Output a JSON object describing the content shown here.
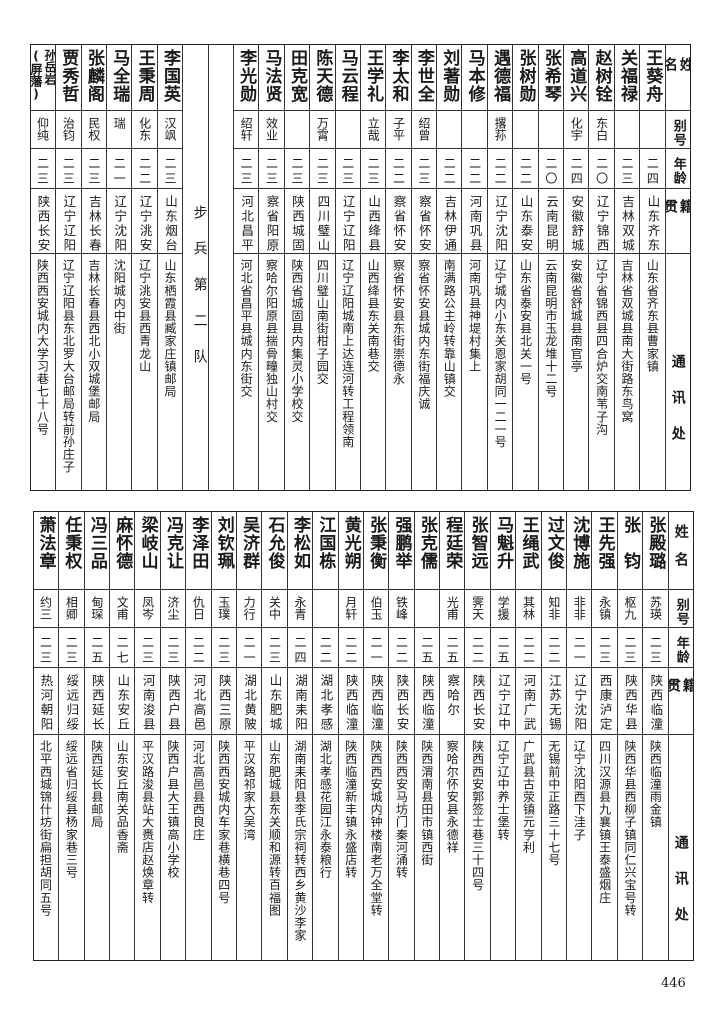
{
  "headers": {
    "name": "姓名",
    "alias": "别号",
    "age": "年龄",
    "origin": "籍贯",
    "address": "通讯处"
  },
  "top": {
    "rows_before_section": [
      {
        "name": "王葵舟",
        "alias": "",
        "age": "二四",
        "origin": "山东齐东",
        "address": "山东省齐东县曹家镇"
      },
      {
        "name": "关福禄",
        "alias": "",
        "age": "二三",
        "origin": "吉林双城",
        "address": "吉林省双城县南大街路东鸟窝"
      },
      {
        "name": "赵树铨",
        "alias": "东白",
        "age": "二〇",
        "origin": "辽宁锦西",
        "address": "辽宁省锦西县四合炉交南苇子沟"
      },
      {
        "name": "高道兴",
        "alias": "化宇",
        "age": "二四",
        "origin": "安徽舒城",
        "address": "安徽省舒城县南官亭"
      },
      {
        "name": "张希琴",
        "alias": "",
        "age": "二〇",
        "origin": "云南昆明",
        "address": "云南昆明市玉龙堆十二号"
      },
      {
        "name": "张树勋",
        "alias": "",
        "age": "二二",
        "origin": "山东泰安",
        "address": "山东省泰安县北关一号"
      },
      {
        "name": "遇德福",
        "alias": "撂荪",
        "age": "二二",
        "origin": "辽宁沈阳",
        "address": "辽宁城内小东关恩家胡同一二一号"
      },
      {
        "name": "马本修",
        "alias": "",
        "age": "二二",
        "origin": "河南巩县",
        "address": "河南巩县神堤村集上"
      },
      {
        "name": "刘著勋",
        "alias": "",
        "age": "二二",
        "origin": "吉林伊通",
        "address": "南满路公主岭转靠山镇交"
      },
      {
        "name": "李世全",
        "alias": "绍曾",
        "age": "二三",
        "origin": "察省怀安",
        "address": "察省怀安县城内东街福庆诚"
      },
      {
        "name": "李太和",
        "alias": "子平",
        "age": "二二",
        "origin": "察省怀安",
        "address": "察省怀安县东街崇德永"
      },
      {
        "name": "王学礼",
        "alias": "立哉",
        "age": "二三",
        "origin": "山西绛县",
        "address": "山西绛县东关南巷交"
      },
      {
        "name": "马云程",
        "alias": "",
        "age": "二三",
        "origin": "辽宁辽阳",
        "address": "辽宁辽阳城南上达连河转工程领南"
      },
      {
        "name": "陈天德",
        "alias": "万霄",
        "age": "二三",
        "origin": "四川璧山",
        "address": "四川璧山南街柑子园交"
      },
      {
        "name": "田克宽",
        "alias": "",
        "age": "二三",
        "origin": "陕西城固",
        "address": "陕西省城固县内集灵小学校交"
      },
      {
        "name": "马法贤",
        "alias": "效业",
        "age": "二三",
        "origin": "察省阳原",
        "address": "察哈尔阳原县揣骨疃独山村交"
      },
      {
        "name": "李光勋",
        "alias": "绍轩",
        "age": "二三",
        "origin": "河北昌平",
        "address": "河北省昌平县城内东街交"
      }
    ],
    "section_title": "步兵第二队",
    "rows_after_section": [
      {
        "name": "李国英",
        "alias": "汉飒",
        "age": "二三",
        "origin": "山东烟台",
        "address": "山东栖霞县臧家庄镇邮局"
      },
      {
        "name": "王秉周",
        "alias": "化东",
        "age": "二二",
        "origin": "辽宁洮安",
        "address": "辽宁洮安县西青龙山"
      },
      {
        "name": "马全瑞",
        "alias": "瑞",
        "age": "二一",
        "origin": "辽宁沈阳",
        "address": "沈阳城内中街"
      },
      {
        "name": "张麟阁",
        "alias": "民权",
        "age": "二三",
        "origin": "吉林长春",
        "address": "吉林长春县西北小双城堡邮局"
      },
      {
        "name": "贾秀哲",
        "alias": "治钧",
        "age": "二三",
        "origin": "辽宁辽阳",
        "address": "辽宁辽阳县东北罗大台邮局转前孙庄子"
      },
      {
        "name": "孙岳岩",
        "name_note": "(屏藩)",
        "alias": "仰纯",
        "age": "二三",
        "origin": "陕西长安",
        "address": "陕西西安城内大学习巷七十八号"
      }
    ]
  },
  "bottom": {
    "rows": [
      {
        "name": "张殿璐",
        "alias": "苏瑛",
        "age": "二三",
        "origin": "陕西临潼",
        "address": "陕西临潼雨金镇"
      },
      {
        "name": "张　钧",
        "alias": "枢九",
        "age": "二三",
        "origin": "陕西华县",
        "address": "陕西华县西柳子镇同仁兴宝号转"
      },
      {
        "name": "王先强",
        "alias": "永镇",
        "age": "二三",
        "origin": "西康泸定",
        "address": "四川汉源县九襄镇王泰盛烟庄"
      },
      {
        "name": "沈博施",
        "alias": "非非",
        "age": "二一",
        "origin": "辽宁沈阳",
        "address": "辽宁沈阳西下洼子"
      },
      {
        "name": "过文俊",
        "alias": "知非",
        "age": "二二",
        "origin": "江苏无锡",
        "address": "无锡前中正路三十七号"
      },
      {
        "name": "王绳武",
        "alias": "其林",
        "age": "二二",
        "origin": "河南广武",
        "address": "广武县古荥镇元亨利"
      },
      {
        "name": "马魁升",
        "alias": "学援",
        "age": "二五",
        "origin": "辽宁辽中",
        "address": "辽宁辽中养士堡转"
      },
      {
        "name": "张智远",
        "alias": "霁天",
        "age": "二二",
        "origin": "陕西长安",
        "address": "陕西西安郭签士巷三十四号"
      },
      {
        "name": "程廷荣",
        "alias": "光甫",
        "age": "二五",
        "origin": "察哈尔",
        "address": "察哈尔怀安县永德祥"
      },
      {
        "name": "张克儒",
        "alias": "",
        "age": "二五",
        "origin": "陕西临潼",
        "address": "陕西渭南县田市镇西街"
      },
      {
        "name": "强鹏举",
        "alias": "铁峰",
        "age": "二二",
        "origin": "陕西长安",
        "address": "陕西西安马坊门秦河涌转"
      },
      {
        "name": "张秉衡",
        "alias": "伯玉",
        "age": "二一",
        "origin": "陕西临潼",
        "address": "陕西西安城内钟楼南老万全堂转"
      },
      {
        "name": "黄光朔",
        "alias": "月轩",
        "age": "二二",
        "origin": "陕西临潼",
        "address": "陕西临潼新丰镇永盛店转"
      },
      {
        "name": "江国栋",
        "alias": "",
        "age": "二二",
        "origin": "湖北孝感",
        "address": "湖北孝感花园江永泰粮行"
      },
      {
        "name": "李松如",
        "alias": "永青",
        "age": "二四",
        "origin": "湖南耒阳",
        "address": "湖南耒阳县李氏宗祠转西乡黄沙李家"
      },
      {
        "name": "石允俊",
        "alias": "关中",
        "age": "二三",
        "origin": "山东肥城",
        "address": "山东肥城县东关顺和源转百福图"
      },
      {
        "name": "吴济群",
        "alias": "力行",
        "age": "二一",
        "origin": "湖北黄陂",
        "address": "平汉路祁家大吴湾"
      },
      {
        "name": "刘钦珮",
        "alias": "玉璞",
        "age": "二三",
        "origin": "陕西三原",
        "address": "陕西西安城内车家巷横巷四号"
      },
      {
        "name": "李泽田",
        "alias": "仇日",
        "age": "二二",
        "origin": "河北高邑",
        "address": "河北高邑县西良庄"
      },
      {
        "name": "冯克让",
        "alias": "济尘",
        "age": "二三",
        "origin": "陕西户县",
        "address": "陕西户县大王镇高小学校"
      },
      {
        "name": "梁岐山",
        "alias": "凤岑",
        "age": "二三",
        "origin": "河南浚县",
        "address": "平汉路浚县站大赉店赵焕章转"
      },
      {
        "name": "麻怀德",
        "alias": "文甫",
        "age": "二七",
        "origin": "山东安丘",
        "address": "山东安丘南关品香斋"
      },
      {
        "name": "冯三品",
        "alias": "甸琛",
        "age": "二五",
        "origin": "陕西延长",
        "address": "陕西延长县邮局"
      },
      {
        "name": "任秉权",
        "alias": "相卿",
        "age": "二三",
        "origin": "绥远归绥",
        "address": "绥远省归绥县杨家巷三号"
      },
      {
        "name": "萧法章",
        "alias": "约三",
        "age": "二三",
        "origin": "热河朝阳",
        "address": "北平西城锦什坊街扁担胡同五号"
      }
    ]
  },
  "page_number": "446"
}
